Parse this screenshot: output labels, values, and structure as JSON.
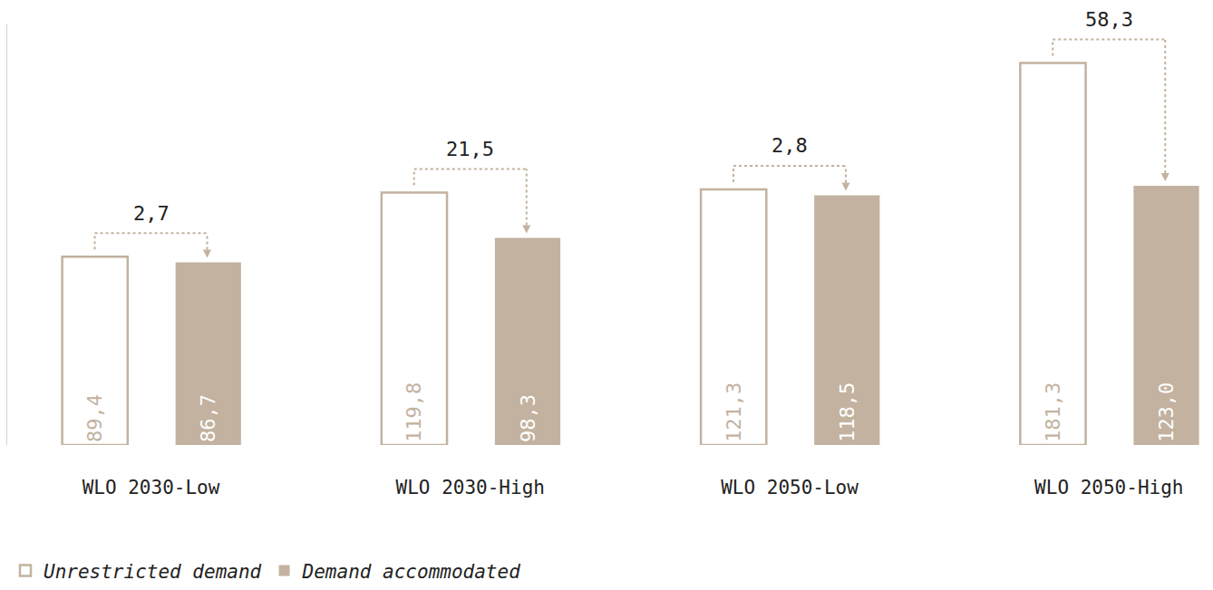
{
  "chart_data": {
    "type": "bar",
    "categories": [
      "WLO 2030-Low",
      "WLO 2030-High",
      "WLO 2050-Low",
      "WLO 2050-High"
    ],
    "series": [
      {
        "name": "Unrestricted demand",
        "color": "#c2b29f",
        "marker": "outline",
        "values": [
          89.4,
          119.8,
          121.3,
          181.3
        ],
        "value_labels": [
          "89,4",
          "119,8",
          "121,3",
          "181,3"
        ]
      },
      {
        "name": "Demand accommodated",
        "color": "#c2b29f",
        "marker": "filled",
        "values": [
          86.7,
          98.3,
          118.5,
          123.0
        ],
        "value_labels": [
          "86,7",
          "98,3",
          "118,5",
          "123,0"
        ]
      }
    ],
    "annotations": [
      {
        "category": "WLO 2030-Low",
        "text": "2,7"
      },
      {
        "category": "WLO 2030-High",
        "text": "21,5"
      },
      {
        "category": "WLO 2050-Low",
        "text": "2,8"
      },
      {
        "category": "WLO 2050-High",
        "text": "58,3"
      }
    ],
    "ylim": [
      0,
      200
    ],
    "tick_labels": "x",
    "data_labels": true,
    "grid": false,
    "legend": "bottom left"
  }
}
